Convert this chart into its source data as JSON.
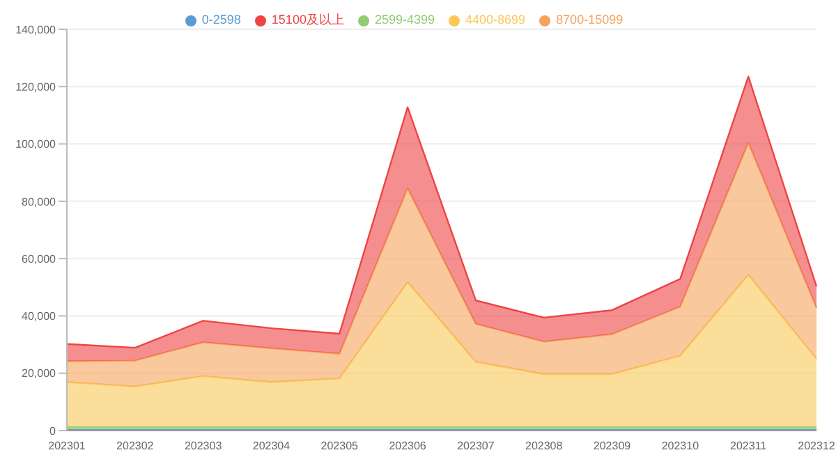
{
  "chart_data": {
    "type": "area",
    "stacked": true,
    "categories": [
      "202301",
      "202302",
      "202303",
      "202304",
      "202305",
      "202306",
      "202307",
      "202308",
      "202309",
      "202310",
      "202311",
      "202312"
    ],
    "series": [
      {
        "name": "0-2598",
        "color": "#5b9bd5",
        "values": [
          400,
          400,
          400,
          400,
          400,
          400,
          400,
          400,
          400,
          400,
          400,
          400
        ]
      },
      {
        "name": "2599-4399",
        "color": "#91cc75",
        "values": [
          900,
          900,
          900,
          900,
          900,
          900,
          900,
          900,
          900,
          900,
          900,
          900
        ]
      },
      {
        "name": "4400-8699",
        "color": "#fac858",
        "values": [
          15600,
          14100,
          17700,
          15600,
          16900,
          50500,
          22700,
          18400,
          18400,
          24800,
          53100,
          23700
        ]
      },
      {
        "name": "8700-15099",
        "color": "#f5a35c",
        "values": [
          7300,
          9000,
          11800,
          11800,
          8600,
          32700,
          13200,
          11300,
          13900,
          17100,
          46000,
          17800
        ]
      },
      {
        "name": "15100及以上",
        "color": "#ee4444",
        "values": [
          6000,
          4500,
          7500,
          7000,
          7000,
          28300,
          8200,
          8400,
          8400,
          9700,
          23100,
          7500
        ]
      }
    ],
    "ylim": [
      0,
      140000
    ],
    "yticks": [
      {
        "value": 0,
        "label": "0"
      },
      {
        "value": 20000,
        "label": "20,000"
      },
      {
        "value": 40000,
        "label": "40,000"
      },
      {
        "value": 60000,
        "label": "60,000"
      },
      {
        "value": 80000,
        "label": "80,000"
      },
      {
        "value": 100000,
        "label": "100,000"
      },
      {
        "value": 120000,
        "label": "120,000"
      },
      {
        "value": 140000,
        "label": "140,000"
      }
    ],
    "grid": "y",
    "legend": "top",
    "marker": "none"
  }
}
